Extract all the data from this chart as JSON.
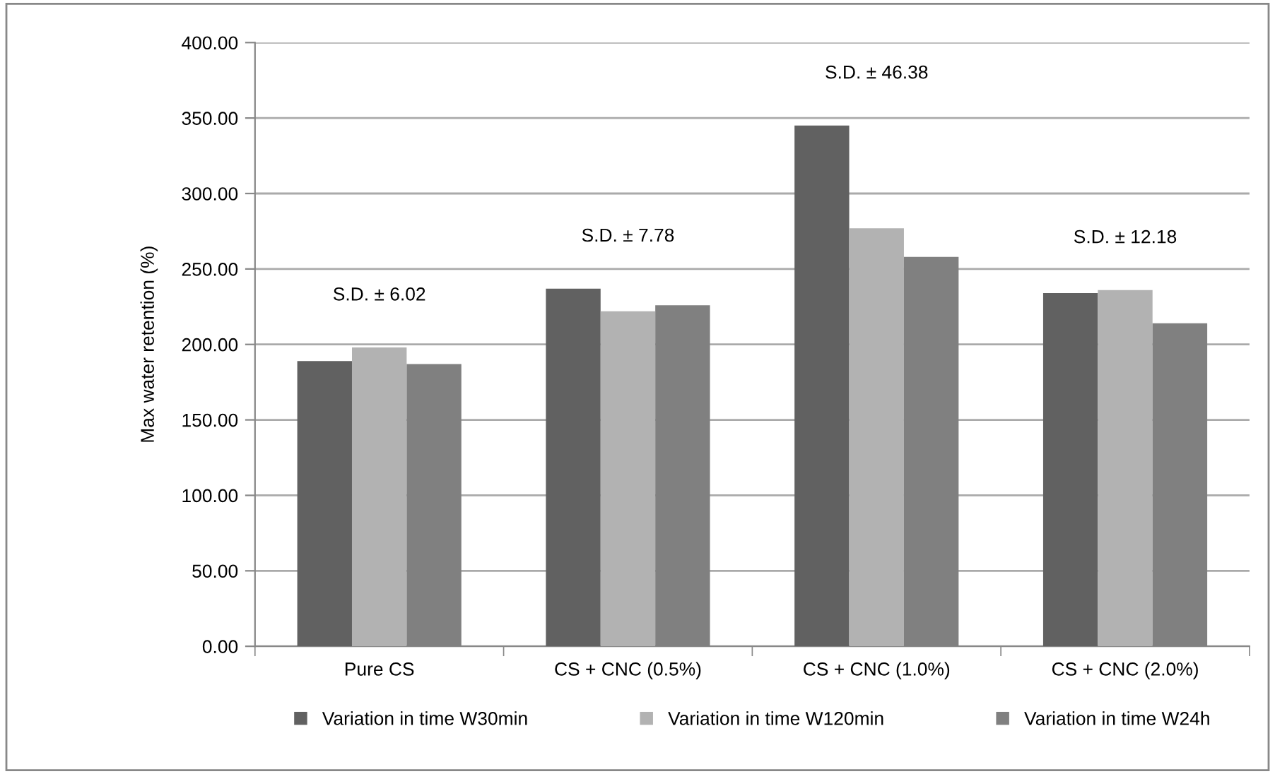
{
  "chart_data": {
    "type": "bar",
    "ylabel": "Max water retention (%)",
    "categories": [
      "Pure CS",
      "CS + CNC (0.5%)",
      "CS + CNC (1.0%)",
      "CS + CNC (2.0%)"
    ],
    "series": [
      {
        "name": "Variation in time W30min",
        "color": "#616161",
        "values": [
          189,
          237,
          345,
          234
        ]
      },
      {
        "name": "Variation in time W120min",
        "color": "#b2b2b2",
        "values": [
          198,
          222,
          277,
          236
        ]
      },
      {
        "name": "Variation in time W24h",
        "color": "#808080",
        "values": [
          187,
          226,
          258,
          214
        ]
      }
    ],
    "ylim": [
      0,
      400
    ],
    "yticks": [
      {
        "value": 0,
        "label": "0.00"
      },
      {
        "value": 50,
        "label": "50.00"
      },
      {
        "value": 100,
        "label": "100.00"
      },
      {
        "value": 150,
        "label": "150.00"
      },
      {
        "value": 200,
        "label": "200.00"
      },
      {
        "value": 250,
        "label": "250.00"
      },
      {
        "value": 300,
        "label": "300.00"
      },
      {
        "value": 350,
        "label": "350.00"
      },
      {
        "value": 400,
        "label": "400.00"
      }
    ],
    "annotations": [
      "S.D. ± 6.02",
      "S.D. ± 7.78",
      "S.D. ± 46.38",
      "S.D. ± 12.18"
    ],
    "grid": "y",
    "legend": "bottom"
  }
}
